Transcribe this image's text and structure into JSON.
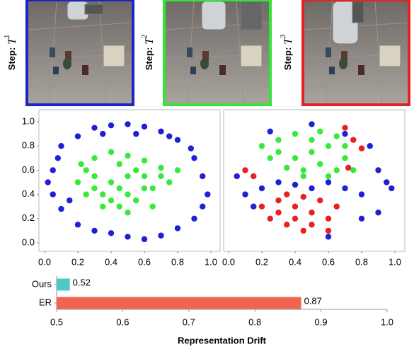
{
  "images": [
    {
      "step": "Step:",
      "symbol": "T",
      "superscript": "1",
      "border": "#1f22c9"
    },
    {
      "step": "Step:",
      "symbol": "T",
      "superscript": "2",
      "border": "#33e633"
    },
    {
      "step": "Step:",
      "symbol": "T",
      "superscript": "3",
      "border": "#e32222"
    }
  ],
  "chart_data": [
    {
      "type": "scatter",
      "xlim": [
        0,
        1
      ],
      "ylim": [
        0,
        1
      ],
      "xticks": [
        {
          "value": 0,
          "label": "0.0"
        },
        {
          "value": 0.2,
          "label": "0.2"
        },
        {
          "value": 0.4,
          "label": "0.4"
        },
        {
          "value": 0.6,
          "label": "0.6"
        },
        {
          "value": 0.8,
          "label": "0.8"
        },
        {
          "value": 1,
          "label": "1.0"
        }
      ],
      "yticks": [
        {
          "value": 0,
          "label": "0.0"
        },
        {
          "value": 0.2,
          "label": "0.2"
        },
        {
          "value": 0.4,
          "label": "0.4"
        },
        {
          "value": 0.6,
          "label": "0.6"
        },
        {
          "value": 0.8,
          "label": "0.8"
        },
        {
          "value": 1,
          "label": "1.0"
        }
      ],
      "series": [
        {
          "color": "#1f1fd6",
          "x": [
            0.05,
            0.1,
            0.2,
            0.3,
            0.4,
            0.5,
            0.6,
            0.7,
            0.8,
            0.9,
            0.95,
            0.98,
            0.95,
            0.9,
            0.8,
            0.7,
            0.6,
            0.5,
            0.4,
            0.3,
            0.2,
            0.1,
            0.05,
            0.02,
            0.08,
            0.15,
            0.35,
            0.55,
            0.75,
            0.88
          ],
          "values": [
            0.6,
            0.8,
            0.88,
            0.95,
            0.97,
            0.98,
            0.96,
            0.92,
            0.85,
            0.7,
            0.55,
            0.4,
            0.3,
            0.2,
            0.12,
            0.06,
            0.03,
            0.05,
            0.08,
            0.1,
            0.15,
            0.28,
            0.4,
            0.5,
            0.7,
            0.35,
            0.9,
            0.9,
            0.88,
            0.78
          ]
        },
        {
          "color": "#3ae83a",
          "x": [
            0.2,
            0.25,
            0.3,
            0.35,
            0.4,
            0.45,
            0.5,
            0.55,
            0.6,
            0.65,
            0.7,
            0.75,
            0.25,
            0.3,
            0.4,
            0.5,
            0.6,
            0.7,
            0.35,
            0.45,
            0.55,
            0.65,
            0.3,
            0.4,
            0.5,
            0.6,
            0.45,
            0.5,
            0.8,
            0.22
          ],
          "values": [
            0.5,
            0.6,
            0.7,
            0.4,
            0.75,
            0.3,
            0.72,
            0.35,
            0.68,
            0.45,
            0.55,
            0.5,
            0.4,
            0.55,
            0.5,
            0.55,
            0.45,
            0.62,
            0.3,
            0.65,
            0.6,
            0.3,
            0.45,
            0.35,
            0.4,
            0.55,
            0.45,
            0.25,
            0.6,
            0.65
          ]
        }
      ]
    },
    {
      "type": "scatter",
      "xlim": [
        0,
        1
      ],
      "ylim": [
        0,
        1
      ],
      "xticks": [
        {
          "value": 0,
          "label": "0.0"
        },
        {
          "value": 0.2,
          "label": "0.2"
        },
        {
          "value": 0.4,
          "label": "0.4"
        },
        {
          "value": 0.6,
          "label": "0.6"
        },
        {
          "value": 0.8,
          "label": "0.8"
        },
        {
          "value": 1,
          "label": "1.0"
        }
      ],
      "series": [
        {
          "color": "#1f1fd6",
          "x": [
            0.05,
            0.1,
            0.2,
            0.3,
            0.4,
            0.6,
            0.7,
            0.8,
            0.9,
            0.95,
            0.98,
            0.9,
            0.8,
            0.6,
            0.15,
            0.25,
            0.5,
            0.7,
            0.85,
            0.5
          ],
          "values": [
            0.55,
            0.4,
            0.45,
            0.5,
            0.48,
            0.5,
            0.45,
            0.4,
            0.6,
            0.5,
            0.45,
            0.25,
            0.2,
            0.05,
            0.3,
            0.92,
            0.98,
            0.9,
            0.8,
            0.45
          ]
        },
        {
          "color": "#3ae83a",
          "x": [
            0.2,
            0.3,
            0.4,
            0.5,
            0.6,
            0.7,
            0.35,
            0.45,
            0.55,
            0.65,
            0.25,
            0.5,
            0.6,
            0.4,
            0.75,
            0.3,
            0.55,
            0.45,
            0.65,
            0.7
          ],
          "values": [
            0.8,
            0.85,
            0.7,
            0.75,
            0.8,
            0.7,
            0.62,
            0.6,
            0.65,
            0.6,
            0.7,
            0.85,
            0.55,
            0.9,
            0.6,
            0.75,
            0.92,
            0.55,
            0.88,
            0.8
          ]
        },
        {
          "color": "#e82020",
          "x": [
            0.2,
            0.25,
            0.3,
            0.35,
            0.4,
            0.45,
            0.5,
            0.55,
            0.6,
            0.65,
            0.3,
            0.4,
            0.5,
            0.6,
            0.35,
            0.45,
            0.1,
            0.15,
            0.7,
            0.75,
            0.8,
            0.72
          ],
          "values": [
            0.3,
            0.2,
            0.35,
            0.15,
            0.3,
            0.1,
            0.25,
            0.35,
            0.2,
            0.3,
            0.25,
            0.2,
            0.15,
            0.1,
            0.4,
            0.38,
            0.6,
            0.55,
            0.95,
            0.85,
            0.78,
            0.62
          ]
        }
      ]
    },
    {
      "type": "hbar",
      "categories": [
        "Ours",
        "ER"
      ],
      "values": [
        0.52,
        0.87
      ],
      "colors": [
        "#4fc8c8",
        "#f26350"
      ],
      "xlim": [
        0.5,
        1
      ],
      "xticks": [
        0.5,
        0.6,
        0.7,
        0.8,
        0.9,
        {
          "value": 1,
          "label": "1.0"
        }
      ],
      "xlabel": "Representation Drift"
    }
  ]
}
